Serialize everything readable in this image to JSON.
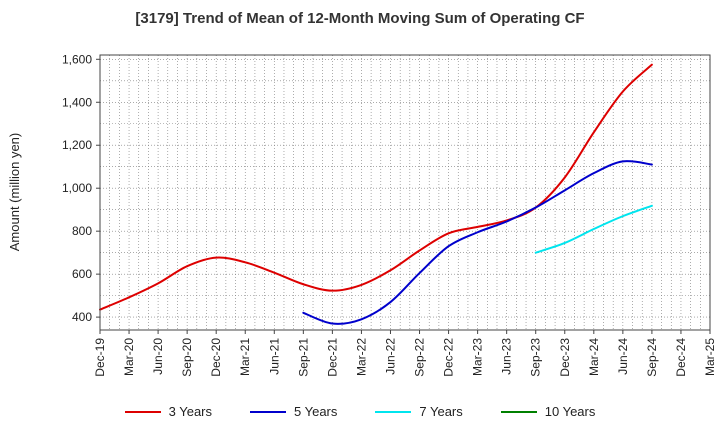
{
  "chart_data": {
    "type": "line",
    "title": "[3179]  Trend of Mean of 12-Month Moving Sum of Operating CF",
    "xlabel": "",
    "ylabel": "Amount (million yen)",
    "ylim": [
      340,
      1620
    ],
    "yticks": [
      400,
      600,
      800,
      1000,
      1200,
      1400,
      1600
    ],
    "ytick_labels": [
      "400",
      "600",
      "800",
      "1,000",
      "1,200",
      "1,400",
      "1,600"
    ],
    "x_range": [
      "Dec-19",
      "Mar-25"
    ],
    "xtick_labels": [
      "Dec-19",
      "Mar-20",
      "Jun-20",
      "Sep-20",
      "Dec-20",
      "Mar-21",
      "Jun-21",
      "Sep-21",
      "Dec-21",
      "Mar-22",
      "Jun-22",
      "Sep-22",
      "Dec-22",
      "Mar-23",
      "Jun-23",
      "Sep-23",
      "Dec-23",
      "Mar-24",
      "Jun-24",
      "Sep-24",
      "Dec-24",
      "Mar-25"
    ],
    "grid": true,
    "legend_position": "bottom",
    "series": [
      {
        "name": "3 Years",
        "color": "#dd0000",
        "x": [
          "Dec-19",
          "Mar-20",
          "Jun-20",
          "Sep-20",
          "Dec-20",
          "Mar-21",
          "Jun-21",
          "Sep-21",
          "Dec-21",
          "Mar-22",
          "Jun-22",
          "Sep-22",
          "Dec-22",
          "Mar-23",
          "Jun-23",
          "Sep-23",
          "Dec-23",
          "Mar-24",
          "Jun-24",
          "Sep-24"
        ],
        "values": [
          435,
          492,
          557,
          637,
          677,
          655,
          607,
          553,
          523,
          550,
          618,
          710,
          790,
          820,
          850,
          910,
          1050,
          1260,
          1450,
          1575
        ]
      },
      {
        "name": "5 Years",
        "color": "#0000cc",
        "x": [
          "Sep-21",
          "Dec-21",
          "Mar-22",
          "Jun-22",
          "Sep-22",
          "Dec-22",
          "Mar-23",
          "Jun-23",
          "Sep-23",
          "Dec-23",
          "Mar-24",
          "Jun-24",
          "Sep-24"
        ],
        "values": [
          420,
          370,
          390,
          470,
          605,
          730,
          795,
          845,
          910,
          990,
          1070,
          1125,
          1110
        ]
      },
      {
        "name": "7 Years",
        "color": "#00e5ee",
        "x": [
          "Sep-23",
          "Dec-23",
          "Mar-24",
          "Jun-24",
          "Sep-24"
        ],
        "values": [
          700,
          745,
          810,
          870,
          918
        ]
      },
      {
        "name": "10 Years",
        "color": "#008000",
        "x": [],
        "values": []
      }
    ]
  }
}
